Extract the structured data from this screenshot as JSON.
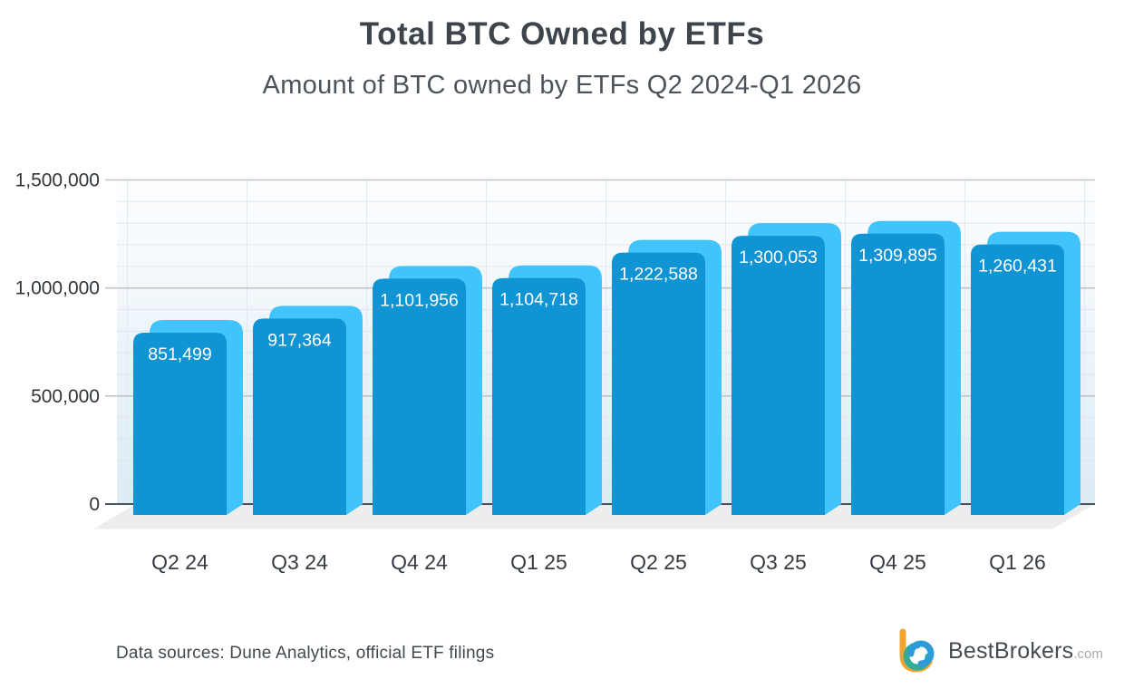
{
  "chart_data": {
    "type": "bar",
    "title": "Total BTC Owned by ETFs",
    "subtitle": "Amount of BTC owned by ETFs Q2 2024-Q1 2026",
    "categories": [
      "Q2 24",
      "Q3 24",
      "Q4 24",
      "Q1 25",
      "Q2 25",
      "Q3 25",
      "Q4 25",
      "Q1 26"
    ],
    "values": [
      851499,
      917364,
      1101956,
      1104718,
      1222588,
      1300053,
      1309895,
      1260431
    ],
    "value_labels": [
      "851,499",
      "917,364",
      "1,101,956",
      "1,104,718",
      "1,222,588",
      "1,300,053",
      "1,309,895",
      "1,260,431"
    ],
    "xlabel": "",
    "ylabel": "",
    "ylim": [
      0,
      1500000
    ],
    "ytick_interval": 500000,
    "ytick_labels": [
      "0",
      "500,000",
      "1,000,000",
      "1,500,000"
    ],
    "minor_tick_interval": 100000,
    "grid": true,
    "legend": false,
    "style": {
      "bar_front": "#1194d3",
      "bar_back": "#40c4fb",
      "plot_bg_top": "#fdfeff",
      "plot_bg_bottom": "#dcebf5",
      "grid_major": "#bfc5cb",
      "grid_minor": "#dfe6eb",
      "grid_vertical": "#e3e9ee",
      "zero_line": "#47525c",
      "floor": "#ededee",
      "value_label_color": "#ffffff",
      "axis_label_color": "#363c42",
      "tick_label_color": "#30353a"
    }
  },
  "footer": {
    "sources_text": "Data sources: Dune Analytics, official ETF filings",
    "brand": {
      "name": "BestBrokers",
      "tld": ".com",
      "logo_colors": {
        "orange": "#f3a42f",
        "teal": "#2fad9a",
        "blue": "#2e9bd8"
      }
    }
  }
}
